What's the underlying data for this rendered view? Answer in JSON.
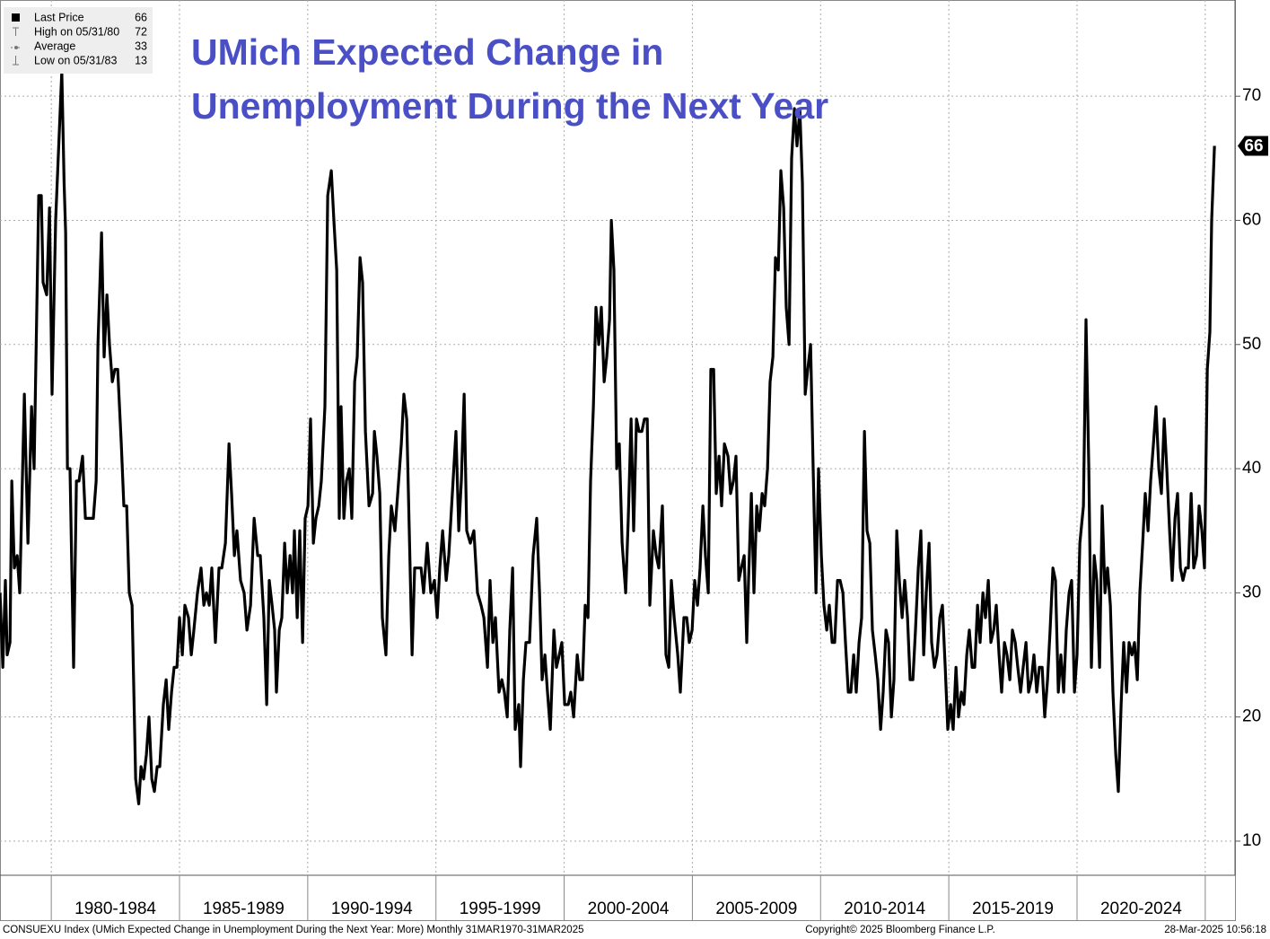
{
  "chart_data": {
    "type": "line",
    "title_lines": [
      "UMich Expected Change in",
      "Unemployment During the Next Year"
    ],
    "legend": [
      {
        "label": "Last Price",
        "value": 66
      },
      {
        "label": "High on 05/31/80",
        "value": 72
      },
      {
        "label": "Average",
        "value": 33
      },
      {
        "label": "Low on 05/31/83",
        "value": 13
      }
    ],
    "color": "#000000",
    "x": [
      1978.0,
      1978.11,
      1978.21,
      1978.28,
      1978.39,
      1978.46,
      1978.56,
      1978.67,
      1978.77,
      1978.95,
      1979.09,
      1979.23,
      1979.33,
      1979.51,
      1979.61,
      1979.68,
      1979.82,
      1979.93,
      1980.03,
      1980.17,
      1980.41,
      1980.5,
      1980.56,
      1980.63,
      1980.73,
      1980.87,
      1980.98,
      1981.08,
      1981.22,
      1981.33,
      1981.64,
      1981.75,
      1981.82,
      1981.96,
      1982.06,
      1982.17,
      1982.27,
      1982.38,
      1982.48,
      1982.59,
      1982.73,
      1982.83,
      1982.94,
      1983.04,
      1983.15,
      1983.29,
      1983.41,
      1983.5,
      1983.6,
      1983.71,
      1983.81,
      1983.92,
      1984.02,
      1984.13,
      1984.23,
      1984.37,
      1984.48,
      1984.58,
      1984.69,
      1984.79,
      1984.9,
      1985.0,
      1985.11,
      1985.21,
      1985.35,
      1985.46,
      1985.56,
      1985.7,
      1985.84,
      1985.95,
      1986.05,
      1986.16,
      1986.26,
      1986.4,
      1986.54,
      1986.65,
      1986.79,
      1986.93,
      1987.03,
      1987.14,
      1987.24,
      1987.38,
      1987.52,
      1987.63,
      1987.77,
      1987.91,
      1988.05,
      1988.15,
      1988.29,
      1988.4,
      1988.5,
      1988.61,
      1988.71,
      1988.78,
      1988.89,
      1988.99,
      1989.1,
      1989.2,
      1989.31,
      1989.41,
      1989.48,
      1989.59,
      1989.69,
      1989.8,
      1989.9,
      1990.01,
      1990.11,
      1990.22,
      1990.32,
      1990.43,
      1990.53,
      1990.67,
      1990.78,
      1990.92,
      1991.02,
      1991.13,
      1991.23,
      1991.3,
      1991.41,
      1991.51,
      1991.62,
      1991.72,
      1991.83,
      1991.93,
      1992.04,
      1992.14,
      1992.25,
      1992.39,
      1992.53,
      1992.6,
      1992.7,
      1992.81,
      1992.91,
      1993.05,
      1993.16,
      1993.26,
      1993.4,
      1993.51,
      1993.65,
      1993.75,
      1993.86,
      1993.96,
      1994.07,
      1994.17,
      1994.31,
      1994.42,
      1994.52,
      1994.66,
      1994.8,
      1994.94,
      1995.05,
      1995.15,
      1995.26,
      1995.4,
      1995.5,
      1995.64,
      1995.78,
      1995.89,
      1995.99,
      1996.1,
      1996.2,
      1996.34,
      1996.48,
      1996.62,
      1996.76,
      1996.87,
      1997.01,
      1997.11,
      1997.22,
      1997.32,
      1997.46,
      1997.57,
      1997.67,
      1997.78,
      1997.88,
      1997.99,
      1998.09,
      1998.23,
      1998.3,
      1998.41,
      1998.51,
      1998.65,
      1998.79,
      1998.93,
      1999.04,
      1999.14,
      1999.25,
      1999.35,
      1999.46,
      1999.6,
      1999.7,
      1999.81,
      1999.91,
      2000.02,
      2000.16,
      2000.26,
      2000.37,
      2000.51,
      2000.61,
      2000.72,
      2000.82,
      2000.93,
      2001.03,
      2001.14,
      2001.24,
      2001.35,
      2001.45,
      2001.56,
      2001.66,
      2001.77,
      2001.84,
      2001.94,
      2002.05,
      2002.15,
      2002.26,
      2002.4,
      2002.5,
      2002.61,
      2002.71,
      2002.82,
      2002.92,
      2003.03,
      2003.13,
      2003.24,
      2003.34,
      2003.48,
      2003.59,
      2003.69,
      2003.83,
      2003.97,
      2004.08,
      2004.18,
      2004.29,
      2004.43,
      2004.53,
      2004.67,
      2004.78,
      2004.88,
      2004.99,
      2005.09,
      2005.2,
      2005.3,
      2005.41,
      2005.51,
      2005.62,
      2005.72,
      2005.83,
      2005.93,
      2006.04,
      2006.14,
      2006.25,
      2006.39,
      2006.49,
      2006.6,
      2006.7,
      2006.81,
      2006.91,
      2007.02,
      2007.12,
      2007.19,
      2007.3,
      2007.4,
      2007.51,
      2007.61,
      2007.72,
      2007.82,
      2007.93,
      2008.03,
      2008.14,
      2008.24,
      2008.35,
      2008.45,
      2008.56,
      2008.66,
      2008.77,
      2008.87,
      2008.98,
      2009.08,
      2009.19,
      2009.29,
      2009.4,
      2009.5,
      2009.61,
      2009.71,
      2009.82,
      2009.92,
      2010.03,
      2010.13,
      2010.24,
      2010.34,
      2010.45,
      2010.55,
      2010.66,
      2010.76,
      2010.87,
      2010.97,
      2011.08,
      2011.18,
      2011.29,
      2011.39,
      2011.5,
      2011.6,
      2011.71,
      2011.81,
      2011.92,
      2012.02,
      2012.13,
      2012.23,
      2012.34,
      2012.44,
      2012.55,
      2012.65,
      2012.76,
      2012.86,
      2012.97,
      2013.07,
      2013.18,
      2013.28,
      2013.39,
      2013.49,
      2013.6,
      2013.7,
      2013.81,
      2013.91,
      2014.02,
      2014.12,
      2014.23,
      2014.33,
      2014.44,
      2014.54,
      2014.65,
      2014.75,
      2014.86,
      2014.96,
      2015.07,
      2015.17,
      2015.28,
      2015.38,
      2015.49,
      2015.59,
      2015.7,
      2015.8,
      2015.91,
      2016.01,
      2016.12,
      2016.22,
      2016.33,
      2016.43,
      2016.54,
      2016.64,
      2016.75,
      2016.85,
      2016.96,
      2017.06,
      2017.17,
      2017.27,
      2017.38,
      2017.48,
      2017.59,
      2017.69,
      2017.8,
      2017.9,
      2018.01,
      2018.11,
      2018.22,
      2018.32,
      2018.43,
      2018.53,
      2018.64,
      2018.74,
      2018.85,
      2018.95,
      2019.06,
      2019.16,
      2019.27,
      2019.37,
      2019.48,
      2019.58,
      2019.69,
      2019.79,
      2019.9,
      2020.0,
      2020.11,
      2020.25,
      2020.35,
      2020.46,
      2020.56,
      2020.67,
      2020.77,
      2020.88,
      2020.98,
      2021.09,
      2021.19,
      2021.3,
      2021.4,
      2021.51,
      2021.61,
      2021.72,
      2021.82,
      2021.93,
      2022.03,
      2022.14,
      2022.24,
      2022.35,
      2022.45,
      2022.56,
      2022.66,
      2022.77,
      2022.87,
      2022.98,
      2023.08,
      2023.19,
      2023.29,
      2023.4,
      2023.5,
      2023.61,
      2023.71,
      2023.82,
      2023.92,
      2024.03,
      2024.13,
      2024.24,
      2024.34,
      2024.45,
      2024.55,
      2024.66,
      2024.76,
      2024.87,
      2024.97,
      2025.08,
      2025.18,
      2025.25,
      2025.36
    ],
    "values": [
      30,
      24,
      31,
      25,
      26,
      39,
      32,
      33,
      30,
      46,
      34,
      45,
      40,
      62,
      62,
      55,
      54,
      61,
      46,
      60,
      72,
      63,
      59,
      40,
      40,
      24,
      39,
      39,
      41,
      36,
      36,
      39,
      50,
      59,
      49,
      54,
      50,
      47,
      48,
      48,
      42,
      37,
      37,
      30,
      29,
      15,
      13,
      16,
      15,
      17,
      20,
      15,
      14,
      16,
      16,
      21,
      23,
      19,
      22,
      24,
      24,
      28,
      25,
      29,
      28,
      25,
      27,
      30,
      32,
      29,
      30,
      29,
      32,
      26,
      32,
      32,
      34,
      42,
      38,
      33,
      35,
      31,
      30,
      27,
      29,
      36,
      33,
      33,
      28,
      21,
      31,
      29,
      27,
      22,
      27,
      28,
      34,
      30,
      33,
      30,
      35,
      28,
      35,
      26,
      36,
      37,
      44,
      34,
      36,
      37,
      39,
      45,
      62,
      64,
      60,
      56,
      36,
      45,
      36,
      39,
      40,
      36,
      47,
      49,
      57,
      55,
      43,
      37,
      38,
      43,
      41,
      38,
      28,
      25,
      33,
      37,
      35,
      38,
      42,
      46,
      44,
      35,
      25,
      32,
      32,
      32,
      30,
      34,
      30,
      31,
      28,
      32,
      35,
      31,
      33,
      38,
      43,
      35,
      39,
      46,
      35,
      34,
      35,
      30,
      29,
      28,
      24,
      31,
      26,
      28,
      22,
      23,
      22,
      20,
      27,
      32,
      19,
      21,
      16,
      23,
      26,
      26,
      33,
      36,
      30,
      23,
      25,
      22,
      19,
      27,
      24,
      25,
      26,
      21,
      21,
      22,
      20,
      25,
      23,
      23,
      29,
      28,
      39,
      45,
      53,
      50,
      53,
      47,
      49,
      52,
      60,
      56,
      40,
      42,
      34,
      30,
      36,
      44,
      35,
      44,
      43,
      43,
      44,
      44,
      29,
      35,
      33,
      32,
      37,
      25,
      24,
      31,
      28,
      25,
      22,
      28,
      28,
      26,
      27,
      31,
      29,
      32,
      37,
      33,
      30,
      48,
      48,
      38,
      41,
      37,
      42,
      41,
      38,
      39,
      41,
      31,
      32,
      33,
      26,
      31,
      38,
      30,
      37,
      35,
      38,
      37,
      40,
      47,
      49,
      57,
      56,
      64,
      61,
      53,
      50,
      65,
      69,
      66,
      69,
      63,
      46,
      48,
      50,
      40,
      30,
      40,
      33,
      29,
      27,
      29,
      26,
      26,
      31,
      31,
      30,
      26,
      22,
      22,
      25,
      22,
      26,
      28,
      43,
      35,
      34,
      27,
      25,
      23,
      19,
      22,
      27,
      26,
      20,
      23,
      35,
      31,
      28,
      31,
      28,
      23,
      23,
      27,
      32,
      35,
      25,
      30,
      34,
      26,
      24,
      25,
      28,
      29,
      24,
      19,
      21,
      19,
      24,
      20,
      22,
      21,
      25,
      27,
      24,
      24,
      29,
      26,
      30,
      28,
      31,
      26,
      27,
      29,
      25,
      22,
      26,
      25,
      23,
      27,
      26,
      24,
      22,
      24,
      26,
      22,
      23,
      25,
      22,
      24,
      24,
      20,
      23,
      27,
      32,
      31,
      22,
      25,
      22,
      27,
      30,
      31,
      22,
      25,
      34,
      37,
      52,
      40,
      24,
      33,
      31,
      24,
      37,
      30,
      32,
      29,
      22,
      17,
      14,
      21,
      26,
      22,
      26,
      25,
      26,
      23,
      30,
      34,
      38,
      35,
      39,
      42,
      45,
      40,
      38,
      44,
      40,
      35,
      31,
      36,
      38,
      32,
      31,
      32,
      32,
      38,
      32,
      33,
      37,
      35,
      32,
      48,
      51,
      60,
      66
    ],
    "xlim": [
      1978.0,
      2026.16
    ],
    "xticks": [
      1980,
      1985,
      1990,
      1995,
      2000,
      2005,
      2010,
      2015,
      2020,
      2025
    ],
    "period_labels": [
      "1980-1984",
      "1985-1989",
      "1990-1994",
      "1995-1999",
      "2000-2004",
      "2005-2009",
      "2010-2014",
      "2015-2019",
      "2020-2024"
    ],
    "ylim": [
      7.25,
      77.75
    ],
    "yticks": [
      10,
      20,
      30,
      40,
      50,
      60,
      70
    ],
    "grid": true,
    "footer": {
      "left": "CONSUEXU Index (UMich Expected Change in Unemployment During the Next Year: More)  Monthly 31MAR1970-31MAR2025",
      "center": "Copyright© 2025 Bloomberg Finance L.P.",
      "right": "28-Mar-2025 10:56:18"
    }
  }
}
